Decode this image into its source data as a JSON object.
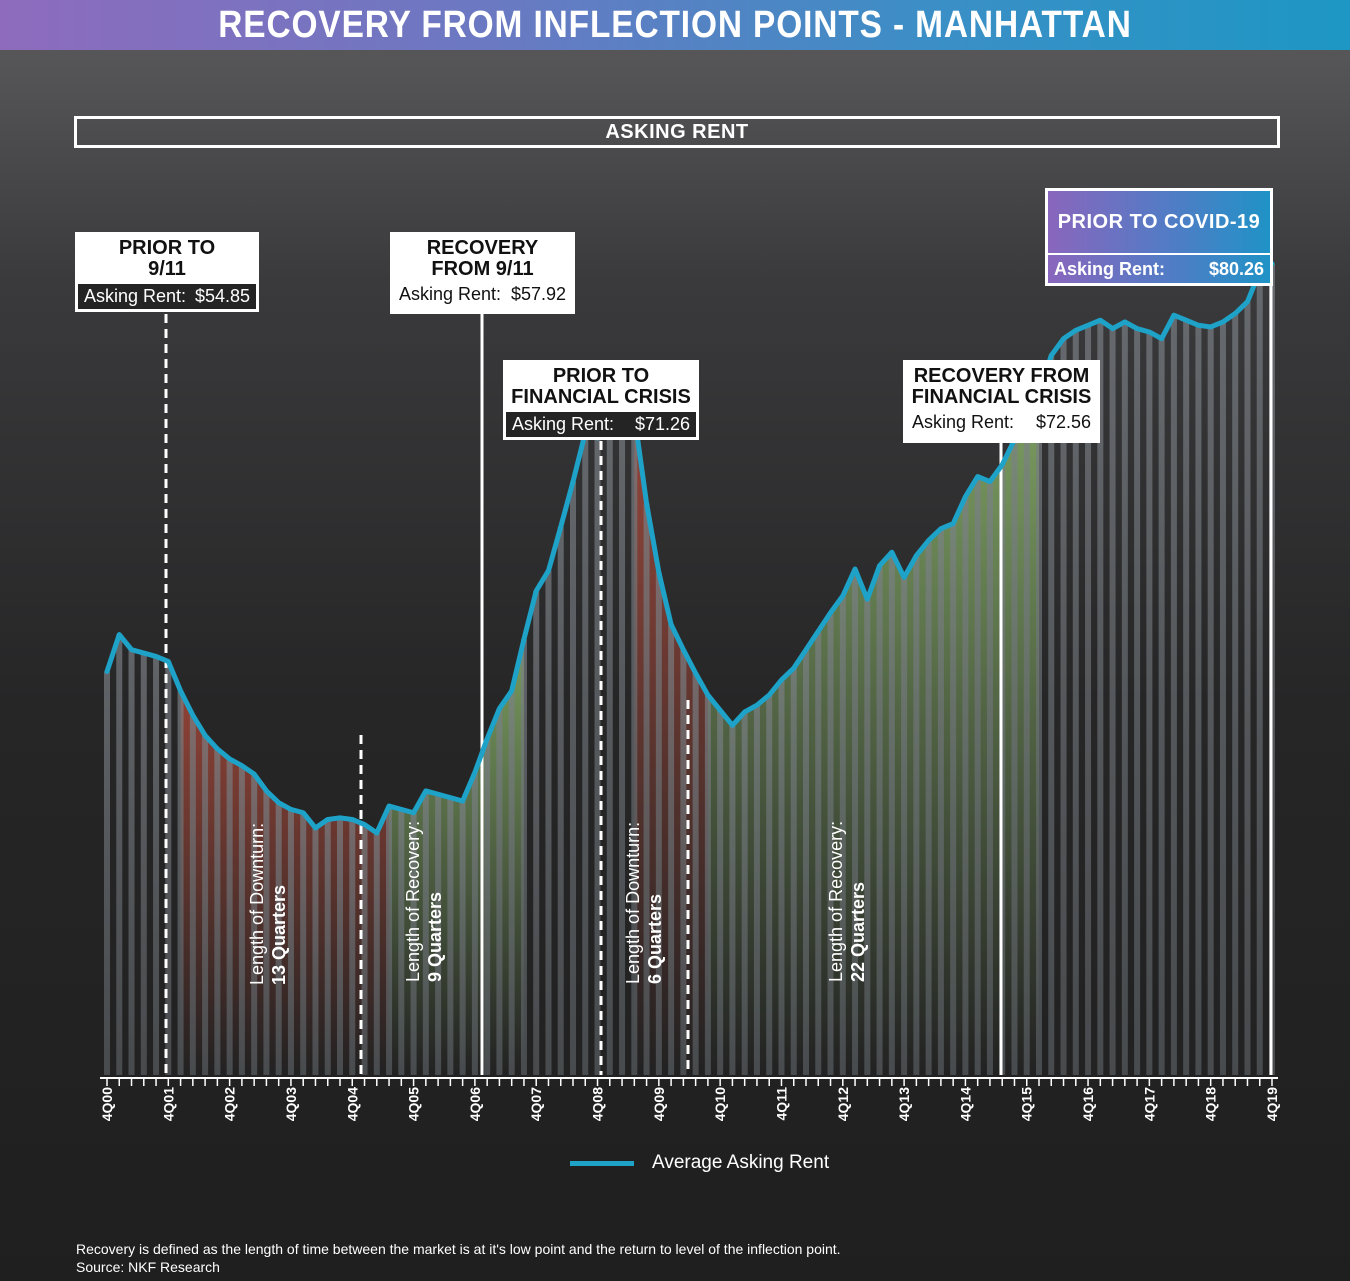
{
  "title": "RECOVERY FROM INFLECTION POINTS - MANHATTAN",
  "subtitle": "ASKING RENT",
  "callouts": {
    "prior_911": {
      "line1": "PRIOR TO",
      "line2": "9/11",
      "label": "Asking Rent:",
      "value": "$54.85"
    },
    "recovery_911": {
      "line1": "RECOVERY",
      "line2": "FROM 9/11",
      "label": "Asking Rent:",
      "value": "$57.92"
    },
    "prior_crisis": {
      "line1": "PRIOR TO",
      "line2": "FINANCIAL CRISIS",
      "label": "Asking Rent:",
      "value": "$71.26"
    },
    "recovery_crisis": {
      "line1": "RECOVERY FROM",
      "line2": "FINANCIAL CRISIS",
      "label": "Asking Rent:",
      "value": "$72.56"
    },
    "prior_covid": {
      "line1": "PRIOR TO COVID-19",
      "label": "Asking Rent:",
      "value": "$80.26"
    }
  },
  "periods": {
    "downturn_1": {
      "label": "Length of Downturn:",
      "value": "13 Quarters"
    },
    "recovery_1": {
      "label": "Length of Recovery:",
      "value": "9 Quarters"
    },
    "downturn_2": {
      "label": "Length of Downturn:",
      "value": "6 Quarters"
    },
    "recovery_2": {
      "label": "Length of Recovery:",
      "value": "22 Quarters"
    }
  },
  "legend": {
    "series_label": "Average Asking Rent"
  },
  "footnote": {
    "line1": "Recovery is defined as the length of time between the market is at it's low point and the return to level of the inflection point.",
    "line2": "Source: NKF Research"
  },
  "colors": {
    "line": "#1ea2c7",
    "downturn": "#b04a3a",
    "recovery": "#8bb66a",
    "bars": "#6b7276"
  },
  "chart_data": {
    "type": "line",
    "title": "RECOVERY FROM INFLECTION POINTS - MANHATTAN",
    "subtitle": "ASKING RENT",
    "series_name": "Average Asking Rent",
    "x_start_quarter": "4Q00",
    "tick_labels": [
      "4Q00",
      "4Q01",
      "4Q02",
      "4Q03",
      "4Q04",
      "4Q05",
      "4Q06",
      "4Q07",
      "4Q08",
      "4Q09",
      "4Q10",
      "4Q11",
      "4Q12",
      "4Q13",
      "4Q14",
      "4Q15",
      "4Q16",
      "4Q17",
      "4Q18",
      "4Q19"
    ],
    "values": [
      56.0,
      58.2,
      57.3,
      57.1,
      56.9,
      56.6,
      54.85,
      53.4,
      52.2,
      51.4,
      50.8,
      50.4,
      49.9,
      48.9,
      48.2,
      47.8,
      47.6,
      46.7,
      47.2,
      47.3,
      47.2,
      46.9,
      46.4,
      48.0,
      47.8,
      47.6,
      48.9,
      48.7,
      48.5,
      48.3,
      50.0,
      52.0,
      53.8,
      54.85,
      57.92,
      60.8,
      62.0,
      64.6,
      67.3,
      70.2,
      69.9,
      71.8,
      71.8,
      71.26,
      66.0,
      61.9,
      58.8,
      57.3,
      55.9,
      54.6,
      53.7,
      52.8,
      53.6,
      54.0,
      54.6,
      55.5,
      56.2,
      57.3,
      58.4,
      59.5,
      60.5,
      62.1,
      60.3,
      62.3,
      63.1,
      61.6,
      62.9,
      63.8,
      64.5,
      64.8,
      66.4,
      67.6,
      67.3,
      68.3,
      69.8,
      70.2,
      72.56,
      74.8,
      75.8,
      76.3,
      76.6,
      76.9,
      76.4,
      76.8,
      76.4,
      76.2,
      75.8,
      77.2,
      76.9,
      76.6,
      76.5,
      76.8,
      77.3,
      78.0,
      79.8,
      80.26
    ],
    "y_range": [
      32,
      90
    ],
    "inflection_points": [
      {
        "label": "PRIOR TO 9/11",
        "value": 54.85
      },
      {
        "label": "RECOVERY FROM 9/11",
        "value": 57.92
      },
      {
        "label": "PRIOR TO FINANCIAL CRISIS",
        "value": 71.26
      },
      {
        "label": "RECOVERY FROM FINANCIAL CRISIS",
        "value": 72.56
      },
      {
        "label": "PRIOR TO COVID-19",
        "value": 80.26
      }
    ],
    "legend": [
      "Average Asking Rent"
    ]
  }
}
